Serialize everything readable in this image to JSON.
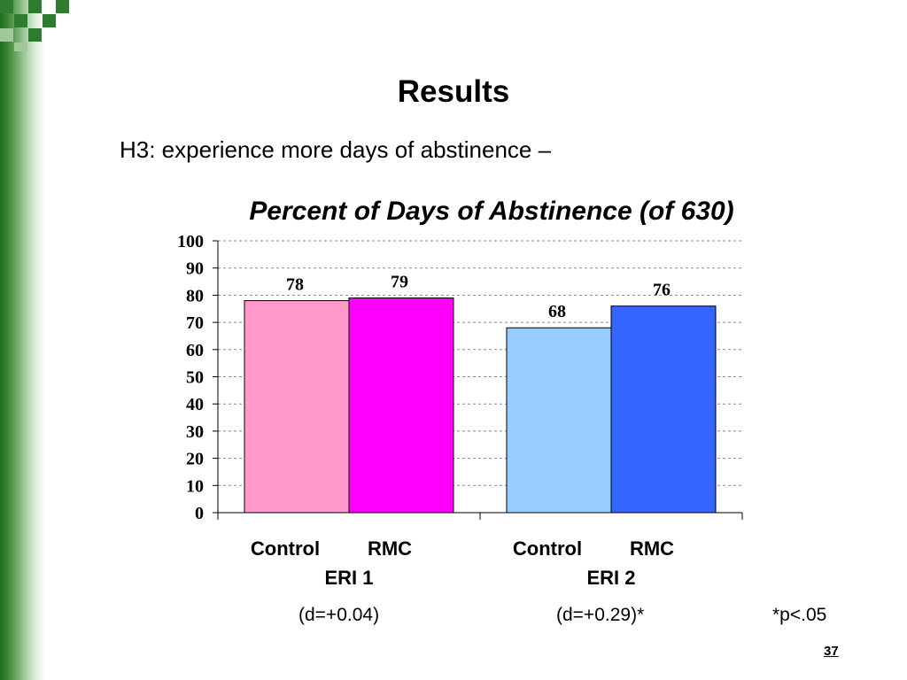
{
  "slide": {
    "title": "Results",
    "subtitle": "H3: experience more days of abstinence –",
    "effects": [
      "(d=+0.04)",
      "(d=+0.29)*"
    ],
    "footnote": "*p<.05",
    "page_number": "37"
  },
  "chart_data": {
    "type": "bar",
    "title": "Percent of Days of Abstinence (of 630)",
    "groups": [
      "ERI 1",
      "ERI 2"
    ],
    "subcategories": [
      "Control",
      "RMC"
    ],
    "series": [
      {
        "group": "ERI 1",
        "values": [
          78,
          79
        ],
        "colors": [
          "#ff99cc",
          "#ff00ff"
        ]
      },
      {
        "group": "ERI 2",
        "values": [
          68,
          76
        ],
        "colors": [
          "#99ccff",
          "#3366ff"
        ]
      }
    ],
    "ylim": [
      0,
      100
    ],
    "yticks": [
      0,
      10,
      20,
      30,
      40,
      50,
      60,
      70,
      80,
      90,
      100
    ],
    "grid": true,
    "legend": "none"
  }
}
